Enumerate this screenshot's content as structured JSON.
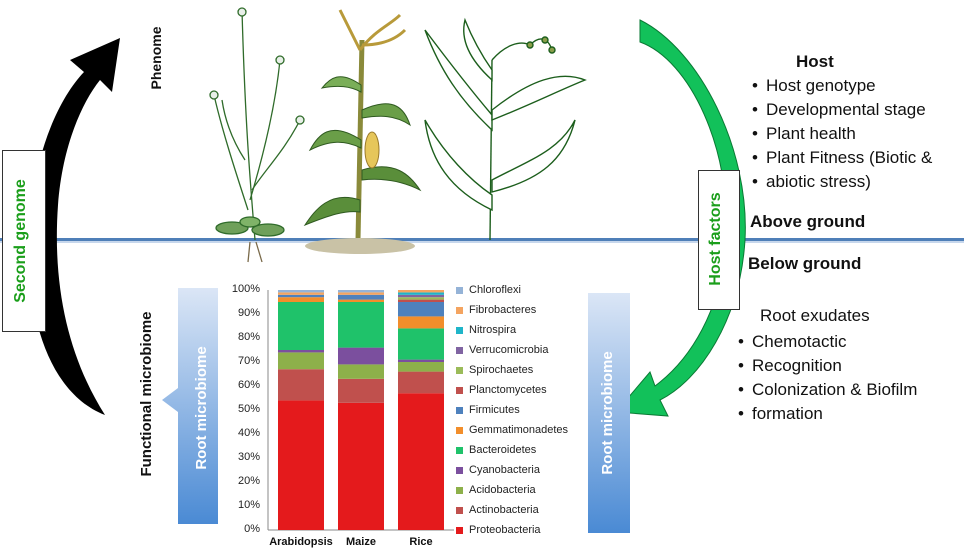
{
  "labels": {
    "phenome": "Phenome",
    "second_genome": "Second genome",
    "host_factors": "Host factors",
    "functional_microbiome": "Functional microbiome",
    "root_microbiome_left": "Root microbiome",
    "root_microbiome_right": "Root microbiome",
    "above_ground": "Above ground",
    "below_ground": "Below ground"
  },
  "host": {
    "title": "Host",
    "items": [
      "Host genotype",
      "Developmental stage",
      "Plant health",
      "Plant Fitness (Biotic &",
      "abiotic stress)"
    ]
  },
  "exudates": {
    "title": "Root exudates",
    "items": [
      "Chemotactic",
      "Recognition",
      "Colonization & Biofilm",
      "formation"
    ]
  },
  "colors": {
    "green_text": "#1a9e1a",
    "arrow_green": "#12c15a",
    "arrow_black": "#000000",
    "ground_line": "#4f7fb8",
    "root_box_top": "#dbe6f6",
    "root_box_bottom": "#4a8ad4"
  },
  "chart_data": {
    "type": "bar",
    "stacked": true,
    "categories": [
      "Arabidopsis",
      "Maize",
      "Rice"
    ],
    "y_ticks": [
      "0%",
      "10%",
      "20%",
      "30%",
      "40%",
      "50%",
      "60%",
      "70%",
      "80%",
      "90%",
      "100%"
    ],
    "ylim": [
      0,
      100
    ],
    "legend_placement": "right",
    "series": [
      {
        "name": "Proteobacteria",
        "color": "#e41a1c",
        "values": [
          54,
          53,
          57
        ]
      },
      {
        "name": "Actinobacteria",
        "color": "#c0504d",
        "values": [
          13,
          10,
          9
        ]
      },
      {
        "name": "Acidobacteria",
        "color": "#8db04a",
        "values": [
          7,
          6,
          4
        ]
      },
      {
        "name": "Cyanobacteria",
        "color": "#7b4f9e",
        "values": [
          1,
          7,
          1
        ]
      },
      {
        "name": "Bacteroidetes",
        "color": "#1fc26a",
        "values": [
          20,
          19,
          13
        ]
      },
      {
        "name": "Gemmatimonadetes",
        "color": "#f28e2b",
        "values": [
          2,
          1,
          5
        ]
      },
      {
        "name": "Firmicutes",
        "color": "#4e81bd",
        "values": [
          1,
          2,
          6
        ]
      },
      {
        "name": "Planctomycetes",
        "color": "#c0504d",
        "values": [
          0,
          0,
          1
        ]
      },
      {
        "name": "Spirochaetes",
        "color": "#9bbb59",
        "values": [
          0,
          0,
          1
        ]
      },
      {
        "name": "Verrucomicrobia",
        "color": "#8064a2",
        "values": [
          0,
          0,
          1
        ]
      },
      {
        "name": "Nitrospira",
        "color": "#1fb5c9",
        "values": [
          0,
          0,
          1
        ]
      },
      {
        "name": "Fibrobacteres",
        "color": "#f4a460",
        "values": [
          1,
          1,
          1
        ]
      },
      {
        "name": "Chloroflexi",
        "color": "#95b3d7",
        "values": [
          1,
          1,
          0
        ]
      }
    ]
  }
}
